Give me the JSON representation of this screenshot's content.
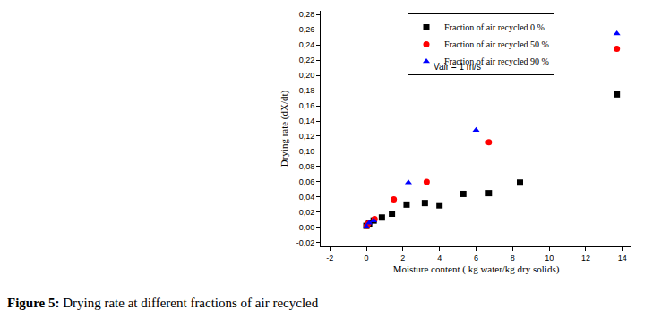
{
  "chart_data": {
    "type": "scatter",
    "title": "Figure 5: Drying rate at different fractions of air recycled",
    "x_label": "Moisture content ( kg water/kg dry solids)",
    "y_label": "Drying rate (dX/dt)",
    "annotations": [
      "Vair = 1 m/s"
    ],
    "xlim": [
      -2.5,
      14.5
    ],
    "xticks": [
      -2,
      0,
      2,
      4,
      6,
      8,
      10,
      12,
      14
    ],
    "ylim": [
      -0.025,
      0.285
    ],
    "yticks": [
      {
        "value": -0.02,
        "label": "-0,02"
      },
      {
        "value": 0,
        "label": "0,00"
      },
      {
        "value": 0.02,
        "label": "0,02"
      },
      {
        "value": 0.04,
        "label": "0,04"
      },
      {
        "value": 0.06,
        "label": "0,06"
      },
      {
        "value": 0.08,
        "label": "0,08"
      },
      {
        "value": 0.1,
        "label": "0,10"
      },
      {
        "value": 0.12,
        "label": "0,12"
      },
      {
        "value": 0.14,
        "label": "0,14"
      },
      {
        "value": 0.16,
        "label": "0,16"
      },
      {
        "value": 0.18,
        "label": "0,18"
      },
      {
        "value": 0.2,
        "label": "0,20"
      },
      {
        "value": 0.22,
        "label": "0,22"
      },
      {
        "value": 0.24,
        "label": "0,24"
      },
      {
        "value": 0.26,
        "label": "0,26"
      },
      {
        "value": 0.28,
        "label": "0,28"
      }
    ],
    "grid": false,
    "legend": "top",
    "series": [
      {
        "name": "Fraction of air recycled 0 %",
        "color": "#000000",
        "marker": "square",
        "x": [
          13.7,
          8.4,
          6.7,
          5.3,
          4.0,
          3.2,
          2.2,
          1.4,
          0.85,
          0.4,
          0.15,
          0.0
        ],
        "values": [
          0.175,
          0.059,
          0.045,
          0.044,
          0.029,
          0.032,
          0.03,
          0.018,
          0.013,
          0.009,
          0.005,
          0.002
        ]
      },
      {
        "name": "Fraction of air recycled 50 %",
        "color": "#ff0000",
        "marker": "circle",
        "x": [
          13.7,
          6.7,
          3.3,
          1.5,
          0.45,
          0.1,
          0.02
        ],
        "values": [
          0.235,
          0.112,
          0.06,
          0.037,
          0.011,
          0.005,
          0.002
        ]
      },
      {
        "name": "Fraction of air recycled 90 %",
        "color": "#0000ff",
        "marker": "triangle-up",
        "x": [
          13.7,
          6.0,
          2.3,
          0.4,
          0.15,
          0.0
        ],
        "values": [
          0.255,
          0.128,
          0.059,
          0.009,
          0.006,
          0.001
        ]
      }
    ]
  }
}
